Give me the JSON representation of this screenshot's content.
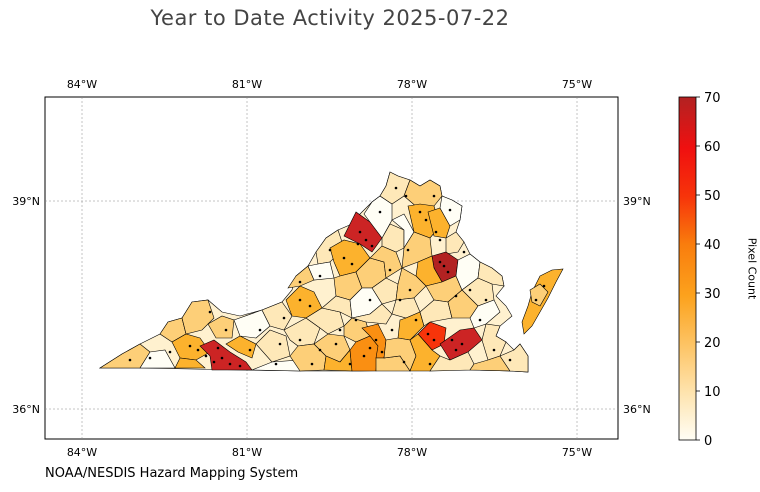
{
  "title": "Year to Date Activity 2025-07-22",
  "credit": "NOAA/NESDIS Hazard Mapping System",
  "map": {
    "lon_ticks": [
      "84°W",
      "81°W",
      "78°W",
      "75°W"
    ],
    "lat_ticks": [
      "39°N",
      "36°N"
    ],
    "grid": true,
    "region": "Virginia counties"
  },
  "colorbar": {
    "label": "Pixel Count",
    "ticks": [
      "0",
      "10",
      "20",
      "30",
      "40",
      "50",
      "60",
      "70"
    ],
    "min": 0,
    "max": 70,
    "colors": [
      "#fffef5",
      "#fee8b8",
      "#fdcf78",
      "#fcb22d",
      "#fa8f12",
      "#f95a0a",
      "#f71a05",
      "#cc2424",
      "#b22222"
    ]
  }
}
